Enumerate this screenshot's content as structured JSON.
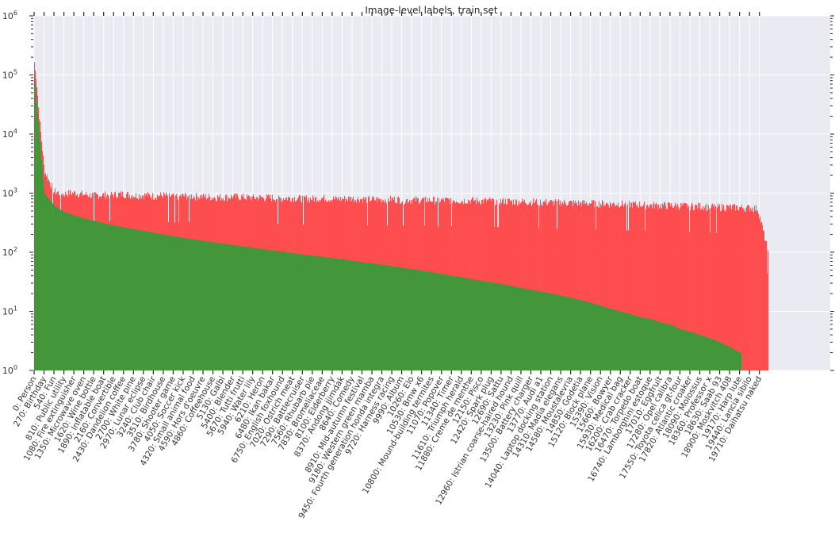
{
  "chart_data": {
    "type": "bar",
    "title": "Image-level labels, train set",
    "xlabel": "",
    "ylabel": "",
    "yscale": "log",
    "ylim": [
      1,
      1000000
    ],
    "y_ticks": [
      "10^0",
      "10^1",
      "10^2",
      "10^3",
      "10^4",
      "10^5",
      "10^6"
    ],
    "grid": true,
    "legend": null,
    "colors": {
      "positive": "#3a9a3a",
      "total": "#ff4444",
      "background": "#eaeaf2",
      "grid": "#ffffff"
    },
    "x_tick_labels": [
      "0: Person",
      "270: Birthday",
      "540: Fun",
      "810: Public utility",
      "1080: Fire extinguisher",
      "1350: Microwave oven",
      "1620: Wine bottle",
      "1890: Inflatable boat",
      "2160: Convertible",
      "2430: Dandelion coffee",
      "2700: White pine",
      "2970: Lunar eclipse",
      "3240: Club chair",
      "3510: Birdhouse",
      "3780: Shooter game",
      "4050: Soccer kick",
      "4320: Small animal food",
      "4590: Hors d'oeuvre",
      "4860: Coffeehouse",
      "5130: Galbi",
      "5400: Blender",
      "5670: Tutti frutti",
      "5940: Water lily",
      "6210: Heron",
      "6480: Ikan bakar",
      "6750: English foxhound",
      "7020: Ostrich meat",
      "7290: Battlecruiser",
      "7560: Rhubarb pie",
      "7830: Bromeliaceae",
      "8100: Elderberry",
      "8370: Andong jjimdak",
      "8640: Comedy",
      "8910: Mid-autumn festival",
      "9180: Western green mamba",
      "9450: Fourth generation honda integra",
      "9720: Harness racing",
      "9990: Album",
      "10260: Elo",
      "10530: Bmw x6",
      "10800: Mound-building termites",
      "11070: Popover",
      "11340: Timer",
      "11610: Triumph herald",
      "11880: Creme de menthe",
      "12150: Pisco",
      "12420: Spark plug",
      "12690: Sattu",
      "12960: Istrian coarse-haired hound",
      "13230: Pink quill",
      "13500: Battery charger",
      "13770: Audi a1",
      "14040: Laptop docking station",
      "14310: Madia elegans",
      "14580: Moustalevria",
      "14850: Godetia",
      "15120: Block plane",
      "15390: Vision",
      "15660: Bowyer",
      "15930: Medical bag",
      "16200: Crab cracker",
      "16470: Torpedo boat",
      "16740: Lamborghini estoque",
      "17010: Eggfruit",
      "17280: Opel calibra",
      "17550: Toyota celica gt-four",
      "17820: Atlantic croaker",
      "18090: Molossus",
      "18360: Professor x",
      "18630: Saab 93",
      "18900: Moskvitch 408",
      "19170: Harp lute",
      "19440: Lancia sibilo",
      "19710: Daihatsu naked"
    ],
    "series": [
      {
        "name": "positive (green)",
        "values": [
          100000,
          1000,
          620,
          480,
          420,
          375,
          340,
          310,
          285,
          265,
          245,
          230,
          215,
          200,
          188,
          176,
          166,
          157,
          148,
          140,
          133,
          126,
          119,
          113,
          107,
          102,
          97,
          92,
          88,
          84,
          80,
          76,
          72,
          68,
          65,
          62,
          58,
          55,
          52,
          49,
          46,
          43,
          40,
          38,
          35,
          33,
          31,
          29,
          27,
          25,
          23,
          21.5,
          20,
          18.5,
          17,
          15.5,
          14,
          12.5,
          11,
          10,
          9,
          8,
          7.5,
          6.5,
          6,
          5,
          4.5,
          4,
          3.5,
          3,
          2.5,
          2,
          2,
          0
        ]
      },
      {
        "name": "total (red)",
        "values": [
          150000,
          2500,
          1100,
          1000,
          1050,
          980,
          950,
          960,
          970,
          1000,
          940,
          960,
          920,
          950,
          900,
          930,
          920,
          900,
          880,
          880,
          900,
          880,
          860,
          870,
          860,
          850,
          860,
          840,
          830,
          850,
          820,
          830,
          840,
          820,
          810,
          800,
          820,
          800,
          790,
          800,
          790,
          780,
          790,
          770,
          780,
          760,
          770,
          760,
          750,
          740,
          740,
          730,
          720,
          720,
          710,
          700,
          700,
          690,
          680,
          680,
          670,
          660,
          650,
          640,
          640,
          630,
          620,
          620,
          610,
          600,
          600,
          590,
          580,
          560
        ]
      }
    ],
    "total_extends_to_x": 19950,
    "total_tail_value": 100
  }
}
